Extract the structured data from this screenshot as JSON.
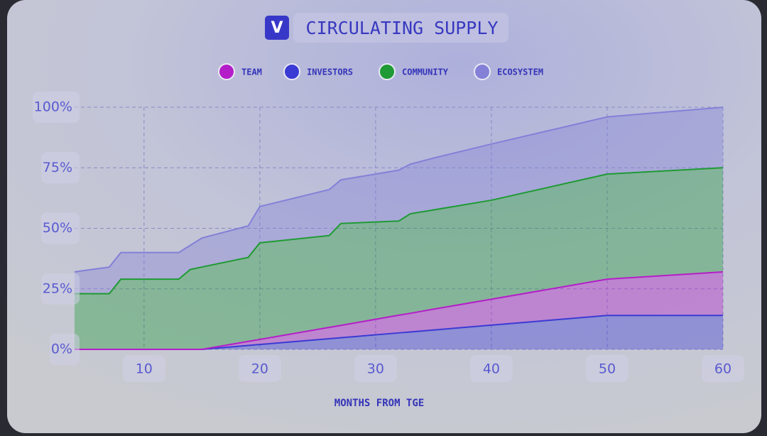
{
  "chart_data": {
    "type": "stacked-area",
    "title": "CIRCULATING SUPPLY",
    "logo": "V",
    "x_label": "MONTHS FROM TGE",
    "x": [
      4,
      7,
      8,
      13,
      14,
      15,
      19,
      20,
      26,
      27,
      32,
      33,
      35,
      40,
      50,
      60
    ],
    "series": [
      {
        "name": "INVESTORS",
        "color": "#3a3ad4",
        "values": [
          0,
          0,
          0,
          0,
          0,
          0,
          1.6,
          2,
          4.4,
          4.8,
          6.8,
          7.2,
          8,
          10,
          14,
          14
        ]
      },
      {
        "name": "TEAM",
        "color": "#b41ec8",
        "values": [
          0,
          0,
          0,
          0,
          0,
          0,
          1.7,
          2.1,
          4.7,
          5.1,
          7.3,
          7.7,
          8.6,
          10.7,
          15,
          18
        ]
      },
      {
        "name": "COMMUNITY",
        "color": "#1f9a34",
        "values": [
          23,
          23,
          29,
          29,
          33,
          34,
          34.7,
          39.9,
          37.9,
          42.1,
          38.9,
          41.1,
          41,
          40.9,
          43.4,
          43
        ]
      },
      {
        "name": "ECOSYSTEM",
        "color": "#8480d8",
        "values": [
          9,
          11,
          11,
          11,
          10,
          12,
          13,
          15,
          19,
          18,
          21,
          20.5,
          21.4,
          23.2,
          23.6,
          25
        ]
      }
    ],
    "legend_order": [
      "TEAM",
      "INVESTORS",
      "COMMUNITY",
      "ECOSYSTEM"
    ],
    "xlim": [
      4,
      60
    ],
    "ylim": [
      0,
      100
    ],
    "xticks": [
      10,
      20,
      30,
      40,
      50,
      60
    ],
    "yticks": [
      {
        "value": 0,
        "label": "0%"
      },
      {
        "value": 25,
        "label": "25%"
      },
      {
        "value": 50,
        "label": "50%"
      },
      {
        "value": 75,
        "label": "75%"
      },
      {
        "value": 100,
        "label": "100%"
      }
    ],
    "grid": true
  }
}
